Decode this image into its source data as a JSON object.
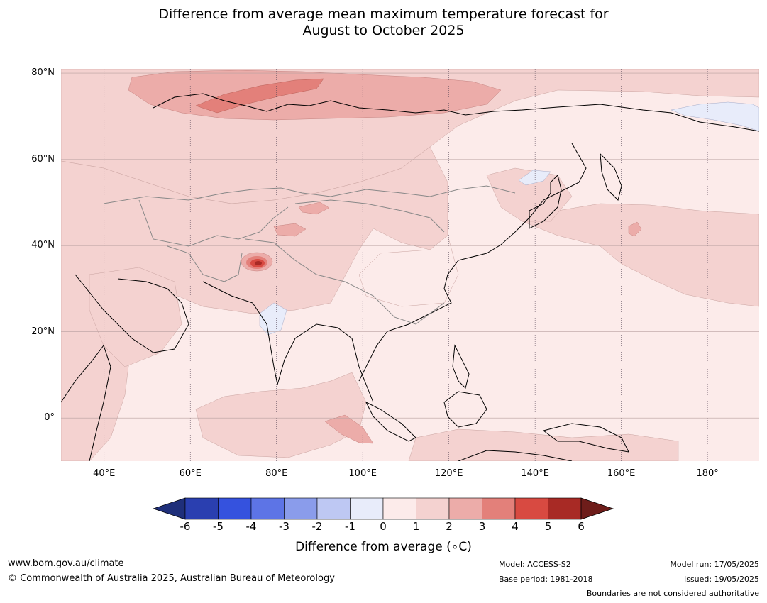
{
  "title": {
    "line1": "Difference from average mean maximum temperature forecast for",
    "line2": "August to October 2025"
  },
  "map": {
    "lon_range": [
      30,
      192
    ],
    "lat_range": [
      -10,
      81
    ],
    "lat_labels": [
      {
        "lat": 80,
        "text": "80°N"
      },
      {
        "lat": 60,
        "text": "60°N"
      },
      {
        "lat": 40,
        "text": "40°N"
      },
      {
        "lat": 20,
        "text": "20°N"
      },
      {
        "lat": 0,
        "text": "0°"
      }
    ],
    "lon_labels": [
      {
        "lon": 40,
        "text": "40°E"
      },
      {
        "lon": 60,
        "text": "60°E"
      },
      {
        "lon": 80,
        "text": "80°E"
      },
      {
        "lon": 100,
        "text": "100°E"
      },
      {
        "lon": 120,
        "text": "120°E"
      },
      {
        "lon": 140,
        "text": "140°E"
      },
      {
        "lon": 160,
        "text": "160°E"
      },
      {
        "lon": 180,
        "text": "180°"
      }
    ],
    "background_color": "#fcebea",
    "regions": [
      {
        "name": "europe-russia-band",
        "category": "1 to 2"
      },
      {
        "name": "northern-russia-high",
        "category": "2 to 3"
      },
      {
        "name": "northwest-russia-peak",
        "category": "3 to 4"
      },
      {
        "name": "central-asia",
        "category": "1 to 2"
      },
      {
        "name": "tibet-hotspot",
        "category": "5 to 6"
      },
      {
        "name": "indian-ocean-band",
        "category": "1 to 2"
      },
      {
        "name": "sumatra-band",
        "category": "2 to 3"
      },
      {
        "name": "pacific-northwest",
        "category": "1 to 2"
      },
      {
        "name": "east-siberia-cool",
        "category": "-1 to 0"
      },
      {
        "name": "india-cool",
        "category": "-1 to 0"
      }
    ]
  },
  "colorbar": {
    "title": "Difference from average (∘C)",
    "ticks": [
      "-6",
      "-5",
      "-4",
      "-3",
      "-2",
      "-1",
      "0",
      "1",
      "2",
      "3",
      "4",
      "5",
      "6"
    ],
    "colors": [
      "#1f2f7a",
      "#2a3fb0",
      "#3552de",
      "#5d74e6",
      "#8a9ceb",
      "#bec8f3",
      "#e8ecfa",
      "#fcebea",
      "#f4d2d0",
      "#ecaca9",
      "#e3807a",
      "#d84a41",
      "#a82a25",
      "#6e1d1a"
    ]
  },
  "footer": {
    "website": "www.bom.gov.au/climate",
    "copyright": "© Commonwealth of Australia 2025, Australian Bureau of Meteorology",
    "model": "Model: ACCESS-S2",
    "base_period": "Base period: 1981-2018",
    "model_run": "Model run: 17/05/2025",
    "issued": "Issued: 19/05/2025",
    "disclaimer": "Boundaries are not considered authoritative"
  }
}
